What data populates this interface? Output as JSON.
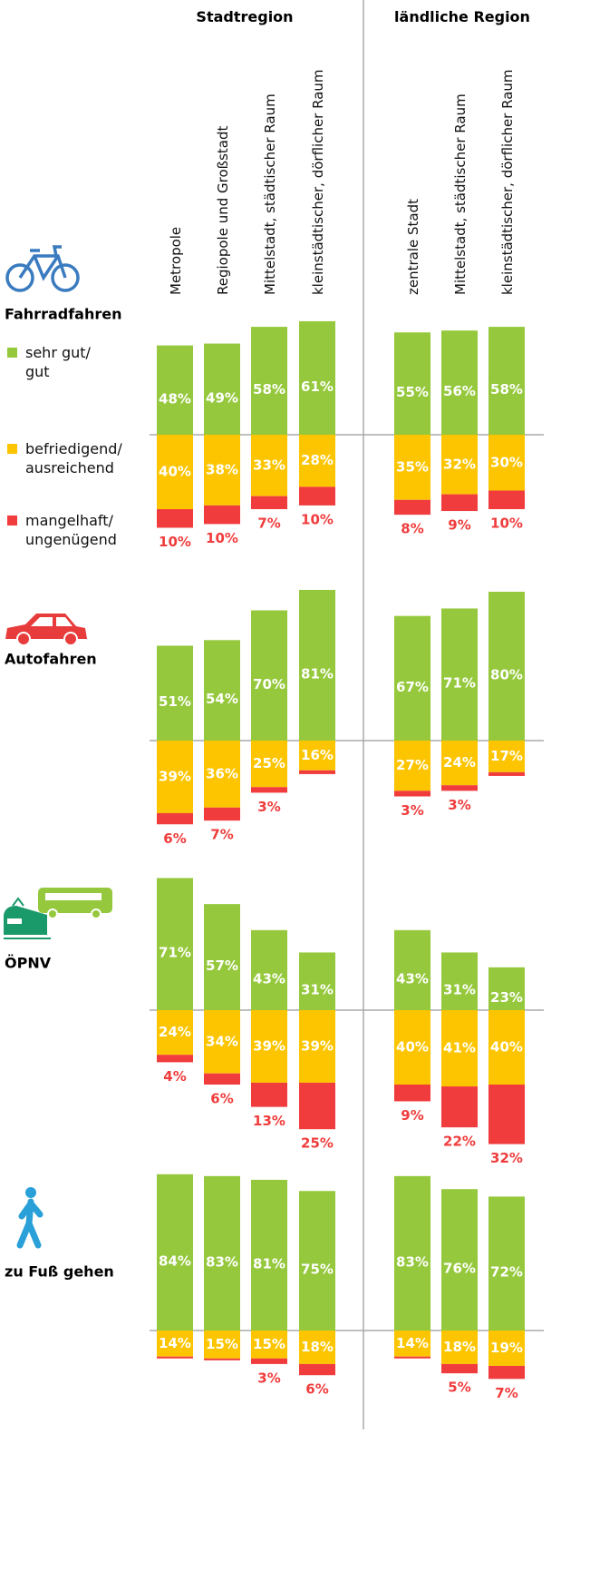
{
  "chart_data": {
    "type": "diverging_stacked_bar",
    "groups": [
      {
        "name": "Stadtregion",
        "categories": [
          "Metropole",
          "Regiopole und Großstadt",
          "Mittelstadt, städtischer Raum",
          "kleinstädtischer, dörflicher Raum"
        ]
      },
      {
        "name": "ländliche Region",
        "categories": [
          "zentrale Stadt",
          "Mittelstadt,  städtischer Raum",
          "kleinstädtischer, dörflicher Raum"
        ]
      }
    ],
    "series": [
      {
        "name": "sehr gut/\ngut",
        "color": "#95c83c"
      },
      {
        "name": "befriedigend/\nausreichend",
        "color": "#fdc500"
      },
      {
        "name": "mangelhaft/\nungenügend",
        "color": "#f03c3c"
      }
    ],
    "panels": [
      {
        "title": "Fahrradfahren",
        "series": [
          {
            "values": [
              48,
              49,
              58,
              61,
              55,
              56,
              58
            ],
            "value_labels": [
              "48%",
              "49%",
              "58%",
              "61%",
              "55%",
              "56%",
              "58%"
            ]
          },
          {
            "values": [
              40,
              38,
              33,
              28,
              35,
              32,
              30
            ],
            "value_labels": [
              "40%",
              "38%",
              "33%",
              "28%",
              "35%",
              "32%",
              "30%"
            ]
          },
          {
            "values": [
              10,
              10,
              7,
              10,
              8,
              9,
              10
            ],
            "value_labels": [
              "10%",
              "10%",
              "7%",
              "10%",
              "8%",
              "9%",
              "10%"
            ]
          }
        ]
      },
      {
        "title": "Autofahren",
        "series": [
          {
            "values": [
              51,
              54,
              70,
              81,
              67,
              71,
              80
            ],
            "value_labels": [
              "51%",
              "54%",
              "70%",
              "81%",
              "67%",
              "71%",
              "80%"
            ]
          },
          {
            "values": [
              39,
              36,
              25,
              16,
              27,
              24,
              17
            ],
            "value_labels": [
              "39%",
              "36%",
              "25%",
              "16%",
              "27%",
              "24%",
              "17%"
            ]
          },
          {
            "values": [
              6,
              7,
              3,
              2,
              3,
              3,
              2
            ],
            "value_labels": [
              "6%",
              "7%",
              "3%",
              null,
              "3%",
              "3%",
              null
            ]
          }
        ]
      },
      {
        "title": "ÖPNV",
        "series": [
          {
            "values": [
              71,
              57,
              43,
              31,
              43,
              31,
              23
            ],
            "value_labels": [
              "71%",
              "57%",
              "43%",
              "31%",
              "43%",
              "31%",
              "23%"
            ]
          },
          {
            "values": [
              24,
              34,
              39,
              39,
              40,
              41,
              40
            ],
            "value_labels": [
              "24%",
              "34%",
              "39%",
              "39%",
              "40%",
              "41%",
              "40%"
            ]
          },
          {
            "values": [
              4,
              6,
              13,
              25,
              9,
              22,
              32
            ],
            "value_labels": [
              "4%",
              "6%",
              "13%",
              "25%",
              "9%",
              "22%",
              "32%"
            ]
          }
        ]
      },
      {
        "title": "zu Fuß gehen",
        "series": [
          {
            "values": [
              84,
              83,
              81,
              75,
              83,
              76,
              72
            ],
            "value_labels": [
              "84%",
              "83%",
              "81%",
              "75%",
              "83%",
              "76%",
              "72%"
            ]
          },
          {
            "values": [
              14,
              15,
              15,
              18,
              14,
              18,
              19
            ],
            "value_labels": [
              "14%",
              "15%",
              "15%",
              "18%",
              "14%",
              "18%",
              "19%"
            ]
          },
          {
            "values": [
              1,
              1,
              3,
              6,
              1,
              5,
              7
            ],
            "value_labels": [
              null,
              null,
              "3%",
              "6%",
              null,
              "5%",
              "7%"
            ]
          }
        ]
      }
    ]
  }
}
